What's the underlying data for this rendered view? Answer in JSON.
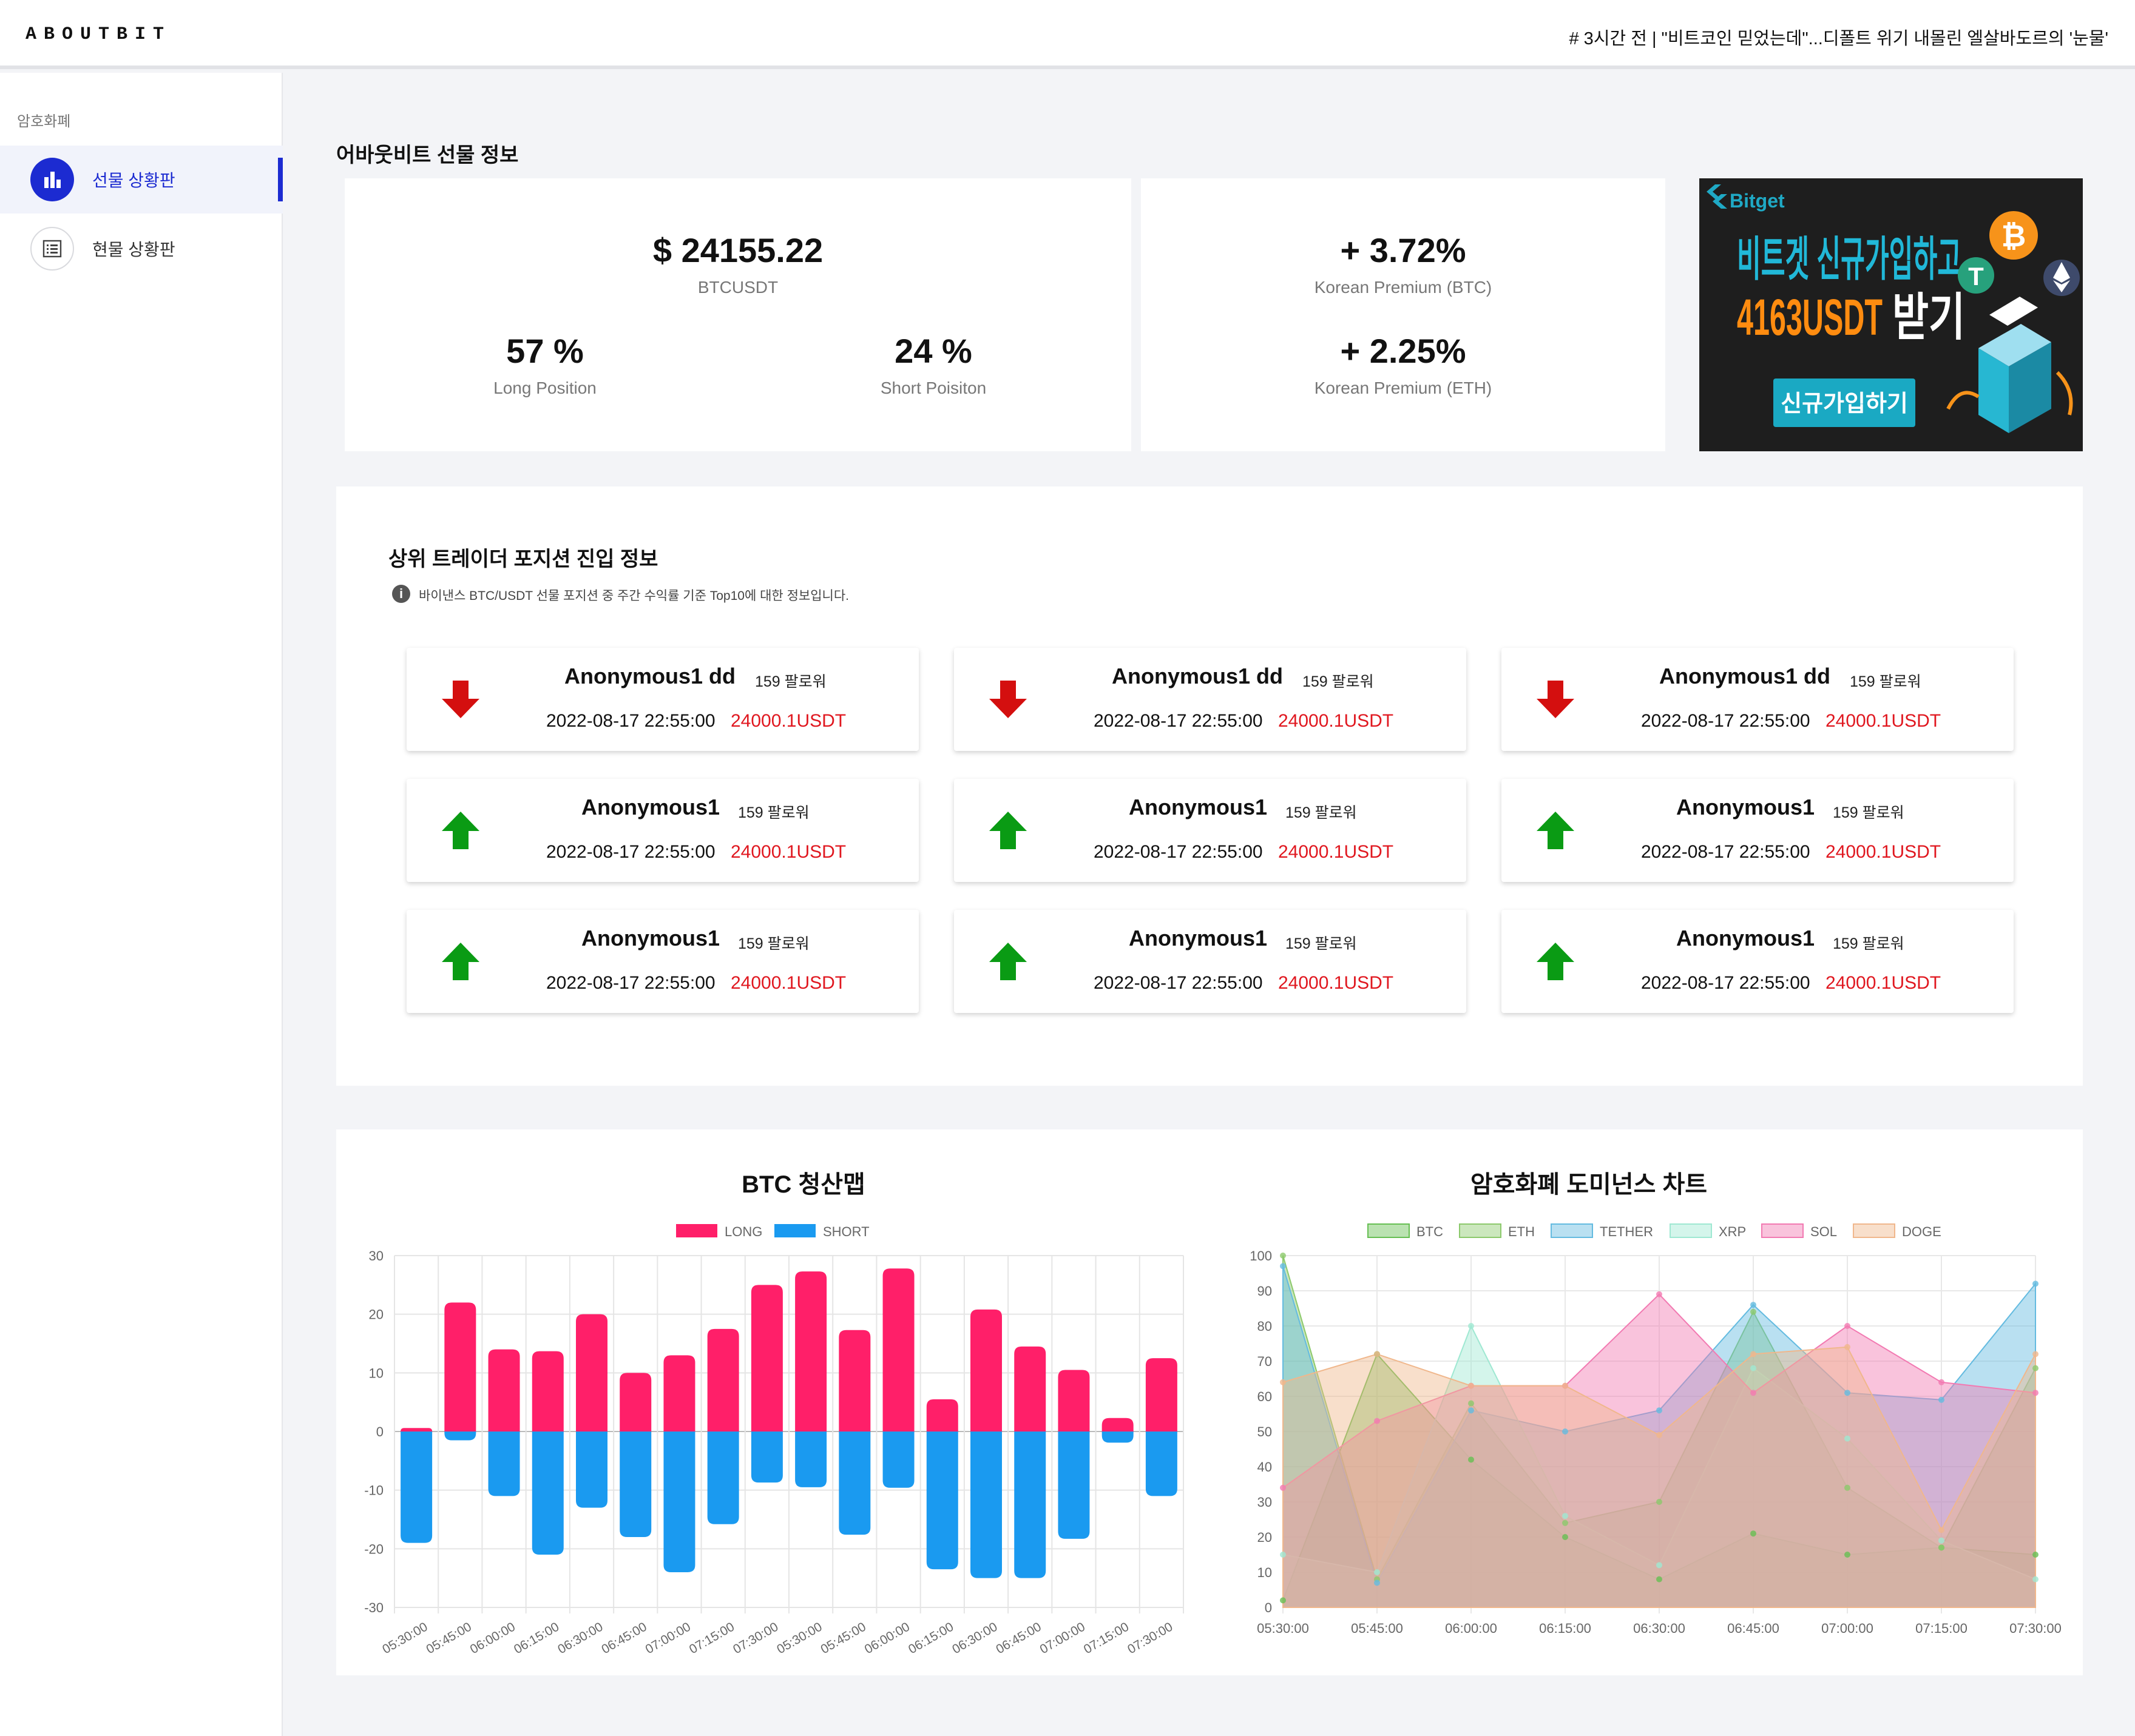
{
  "header": {
    "logo": "ABOUTBIT",
    "ticker": "# 3시간 전 | \"비트코인 믿었는데\"...디폴트 위기 내몰린 엘살바도르의 '눈물'"
  },
  "sidebar": {
    "section": "암호화폐",
    "items": [
      {
        "label": "선물 상황판",
        "icon": "bar-chart-icon",
        "active": true
      },
      {
        "label": "현물 상황판",
        "icon": "list-icon",
        "active": false
      }
    ]
  },
  "futures": {
    "title": "어바웃비트 선물 정보",
    "price": "$ 24155.22",
    "price_label": "BTCUSDT",
    "long": "57 %",
    "long_label": "Long Position",
    "short": "24 %",
    "short_label": "Short Poisiton",
    "kp_btc": "+ 3.72%",
    "kp_btc_label": "Korean Premium (BTC)",
    "kp_eth": "+ 2.25%",
    "kp_eth_label": "Korean Premium (ETH)"
  },
  "ad": {
    "brand": "Bitget",
    "line1": "비트겟 신규가입하고",
    "line2_amount": "4163USDT",
    "line2_suffix": "받기",
    "button": "신규가입하기"
  },
  "traders": {
    "title": "상위 트레이더 포지션 진입 정보",
    "info": "바이낸스 BTC/USDT 선물 포지션 중 주간 수익률 기준 Top10에 대한 정보입니다.",
    "rows": [
      [
        {
          "name": "Anonymous1 dd",
          "followers": "159 팔로워",
          "date": "2022-08-17 22:55:00",
          "amount": "24000.1USDT",
          "dir": "down"
        },
        {
          "name": "Anonymous1 dd",
          "followers": "159 팔로워",
          "date": "2022-08-17 22:55:00",
          "amount": "24000.1USDT",
          "dir": "down"
        },
        {
          "name": "Anonymous1 dd",
          "followers": "159 팔로워",
          "date": "2022-08-17 22:55:00",
          "amount": "24000.1USDT",
          "dir": "down"
        }
      ],
      [
        {
          "name": "Anonymous1",
          "followers": "159 팔로워",
          "date": "2022-08-17 22:55:00",
          "amount": "24000.1USDT",
          "dir": "up"
        },
        {
          "name": "Anonymous1",
          "followers": "159 팔로워",
          "date": "2022-08-17 22:55:00",
          "amount": "24000.1USDT",
          "dir": "up"
        },
        {
          "name": "Anonymous1",
          "followers": "159 팔로워",
          "date": "2022-08-17 22:55:00",
          "amount": "24000.1USDT",
          "dir": "up"
        }
      ],
      [
        {
          "name": "Anonymous1",
          "followers": "159 팔로워",
          "date": "2022-08-17 22:55:00",
          "amount": "24000.1USDT",
          "dir": "up"
        },
        {
          "name": "Anonymous1",
          "followers": "159 팔로워",
          "date": "2022-08-17 22:55:00",
          "amount": "24000.1USDT",
          "dir": "up"
        },
        {
          "name": "Anonymous1",
          "followers": "159 팔로워",
          "date": "2022-08-17 22:55:00",
          "amount": "24000.1USDT",
          "dir": "up"
        }
      ]
    ]
  },
  "colors": {
    "accent": "#1c2bd1",
    "up": "#0a9b14",
    "down": "#d40f0f",
    "amount": "#e0171f",
    "long": "#ff1f69",
    "short": "#1a9af0"
  },
  "chart_data": [
    {
      "type": "bar",
      "title": "BTC 청산맵",
      "legend_placement": "top",
      "categories": [
        "05:30:00",
        "05:45:00",
        "06:00:00",
        "06:15:00",
        "06:30:00",
        "06:45:00",
        "07:00:00",
        "07:15:00",
        "07:30:00",
        "05:30:00",
        "05:45:00",
        "06:00:00",
        "06:15:00",
        "06:30:00",
        "06:45:00",
        "07:00:00",
        "07:15:00",
        "07:30:00"
      ],
      "series": [
        {
          "name": "LONG",
          "color": "#ff1f69",
          "values": [
            0.6,
            22,
            14,
            13.7,
            20,
            10,
            13,
            17.5,
            25,
            27.3,
            17.3,
            27.8,
            5.5,
            20.8,
            14.5,
            10.5,
            2.3,
            12.5
          ]
        },
        {
          "name": "SHORT",
          "color": "#1a9af0",
          "values": [
            -19,
            -1.5,
            -11,
            -21,
            -13,
            -18,
            -24,
            -15.8,
            -8.7,
            -9.5,
            -17.6,
            -9.6,
            -23.5,
            -25,
            -25,
            -18.3,
            -1.9,
            -11
          ]
        }
      ],
      "ylim": [
        -30,
        30
      ],
      "yticks": [
        "30",
        "20",
        "10",
        "0",
        "-10",
        "-20",
        "-30"
      ],
      "grid": true
    },
    {
      "type": "area",
      "title": "암호화폐 도미넌스 차트",
      "legend_placement": "top",
      "x": [
        "05:30:00",
        "05:45:00",
        "06:00:00",
        "06:15:00",
        "06:30:00",
        "06:45:00",
        "07:00:00",
        "07:15:00",
        "07:30:00"
      ],
      "series": [
        {
          "name": "BTC",
          "color": "#67bf53",
          "values": [
            2,
            72,
            42,
            20,
            8,
            21,
            15,
            17,
            15
          ]
        },
        {
          "name": "ETH",
          "color": "#8cc96c",
          "values": [
            100,
            8,
            58,
            24,
            30,
            84,
            34,
            17,
            68
          ]
        },
        {
          "name": "TETHER",
          "color": "#64bbe0",
          "values": [
            97,
            7,
            56,
            50,
            56,
            86,
            61,
            59,
            92
          ]
        },
        {
          "name": "XRP",
          "color": "#9fe8d2",
          "values": [
            15,
            10,
            80,
            26,
            12,
            68,
            48,
            19,
            8
          ]
        },
        {
          "name": "SOL",
          "color": "#f27ab2",
          "values": [
            34,
            53,
            63,
            63,
            89,
            61,
            80,
            64,
            61
          ]
        },
        {
          "name": "DOGE",
          "color": "#f0b78c",
          "values": [
            64,
            72,
            63,
            63,
            49,
            72,
            74,
            22,
            72
          ]
        }
      ],
      "ylim": [
        0,
        100
      ],
      "yticks": [
        "100",
        "90",
        "80",
        "70",
        "60",
        "50",
        "40",
        "30",
        "20",
        "10",
        "0"
      ],
      "grid": true
    }
  ]
}
